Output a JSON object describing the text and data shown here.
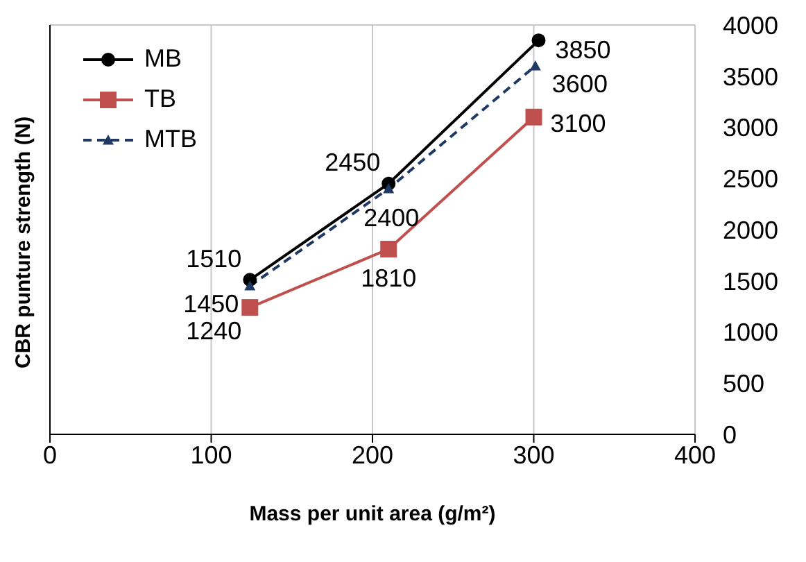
{
  "chart_data": {
    "type": "line",
    "xlabel": "Mass per unit area (g/m²)",
    "ylabel": "CBR punture strength  (N)",
    "xlim": [
      0,
      400
    ],
    "xticks": [
      0,
      100,
      200,
      300,
      400
    ],
    "ylim": [
      0,
      4000
    ],
    "yticks": [
      0,
      500,
      1000,
      1500,
      2000,
      2500,
      3000,
      3500,
      4000
    ],
    "grid": true,
    "legend": "top left",
    "data_labels": true,
    "series": [
      {
        "name": "MB",
        "color": "#000000",
        "marker": "circle",
        "line_style": "solid",
        "x": [
          124,
          210,
          303
        ],
        "values": [
          1510,
          2450,
          3850
        ]
      },
      {
        "name": "TB",
        "color": "#c0504d",
        "marker": "square",
        "line_style": "solid",
        "x": [
          124,
          210,
          300
        ],
        "values": [
          1240,
          1810,
          3100
        ]
      },
      {
        "name": "MTB",
        "color": "#1f3864",
        "marker": "triangle",
        "line_style": "dashed",
        "x": [
          124,
          210,
          301
        ],
        "values": [
          1450,
          2400,
          3600
        ]
      }
    ]
  }
}
